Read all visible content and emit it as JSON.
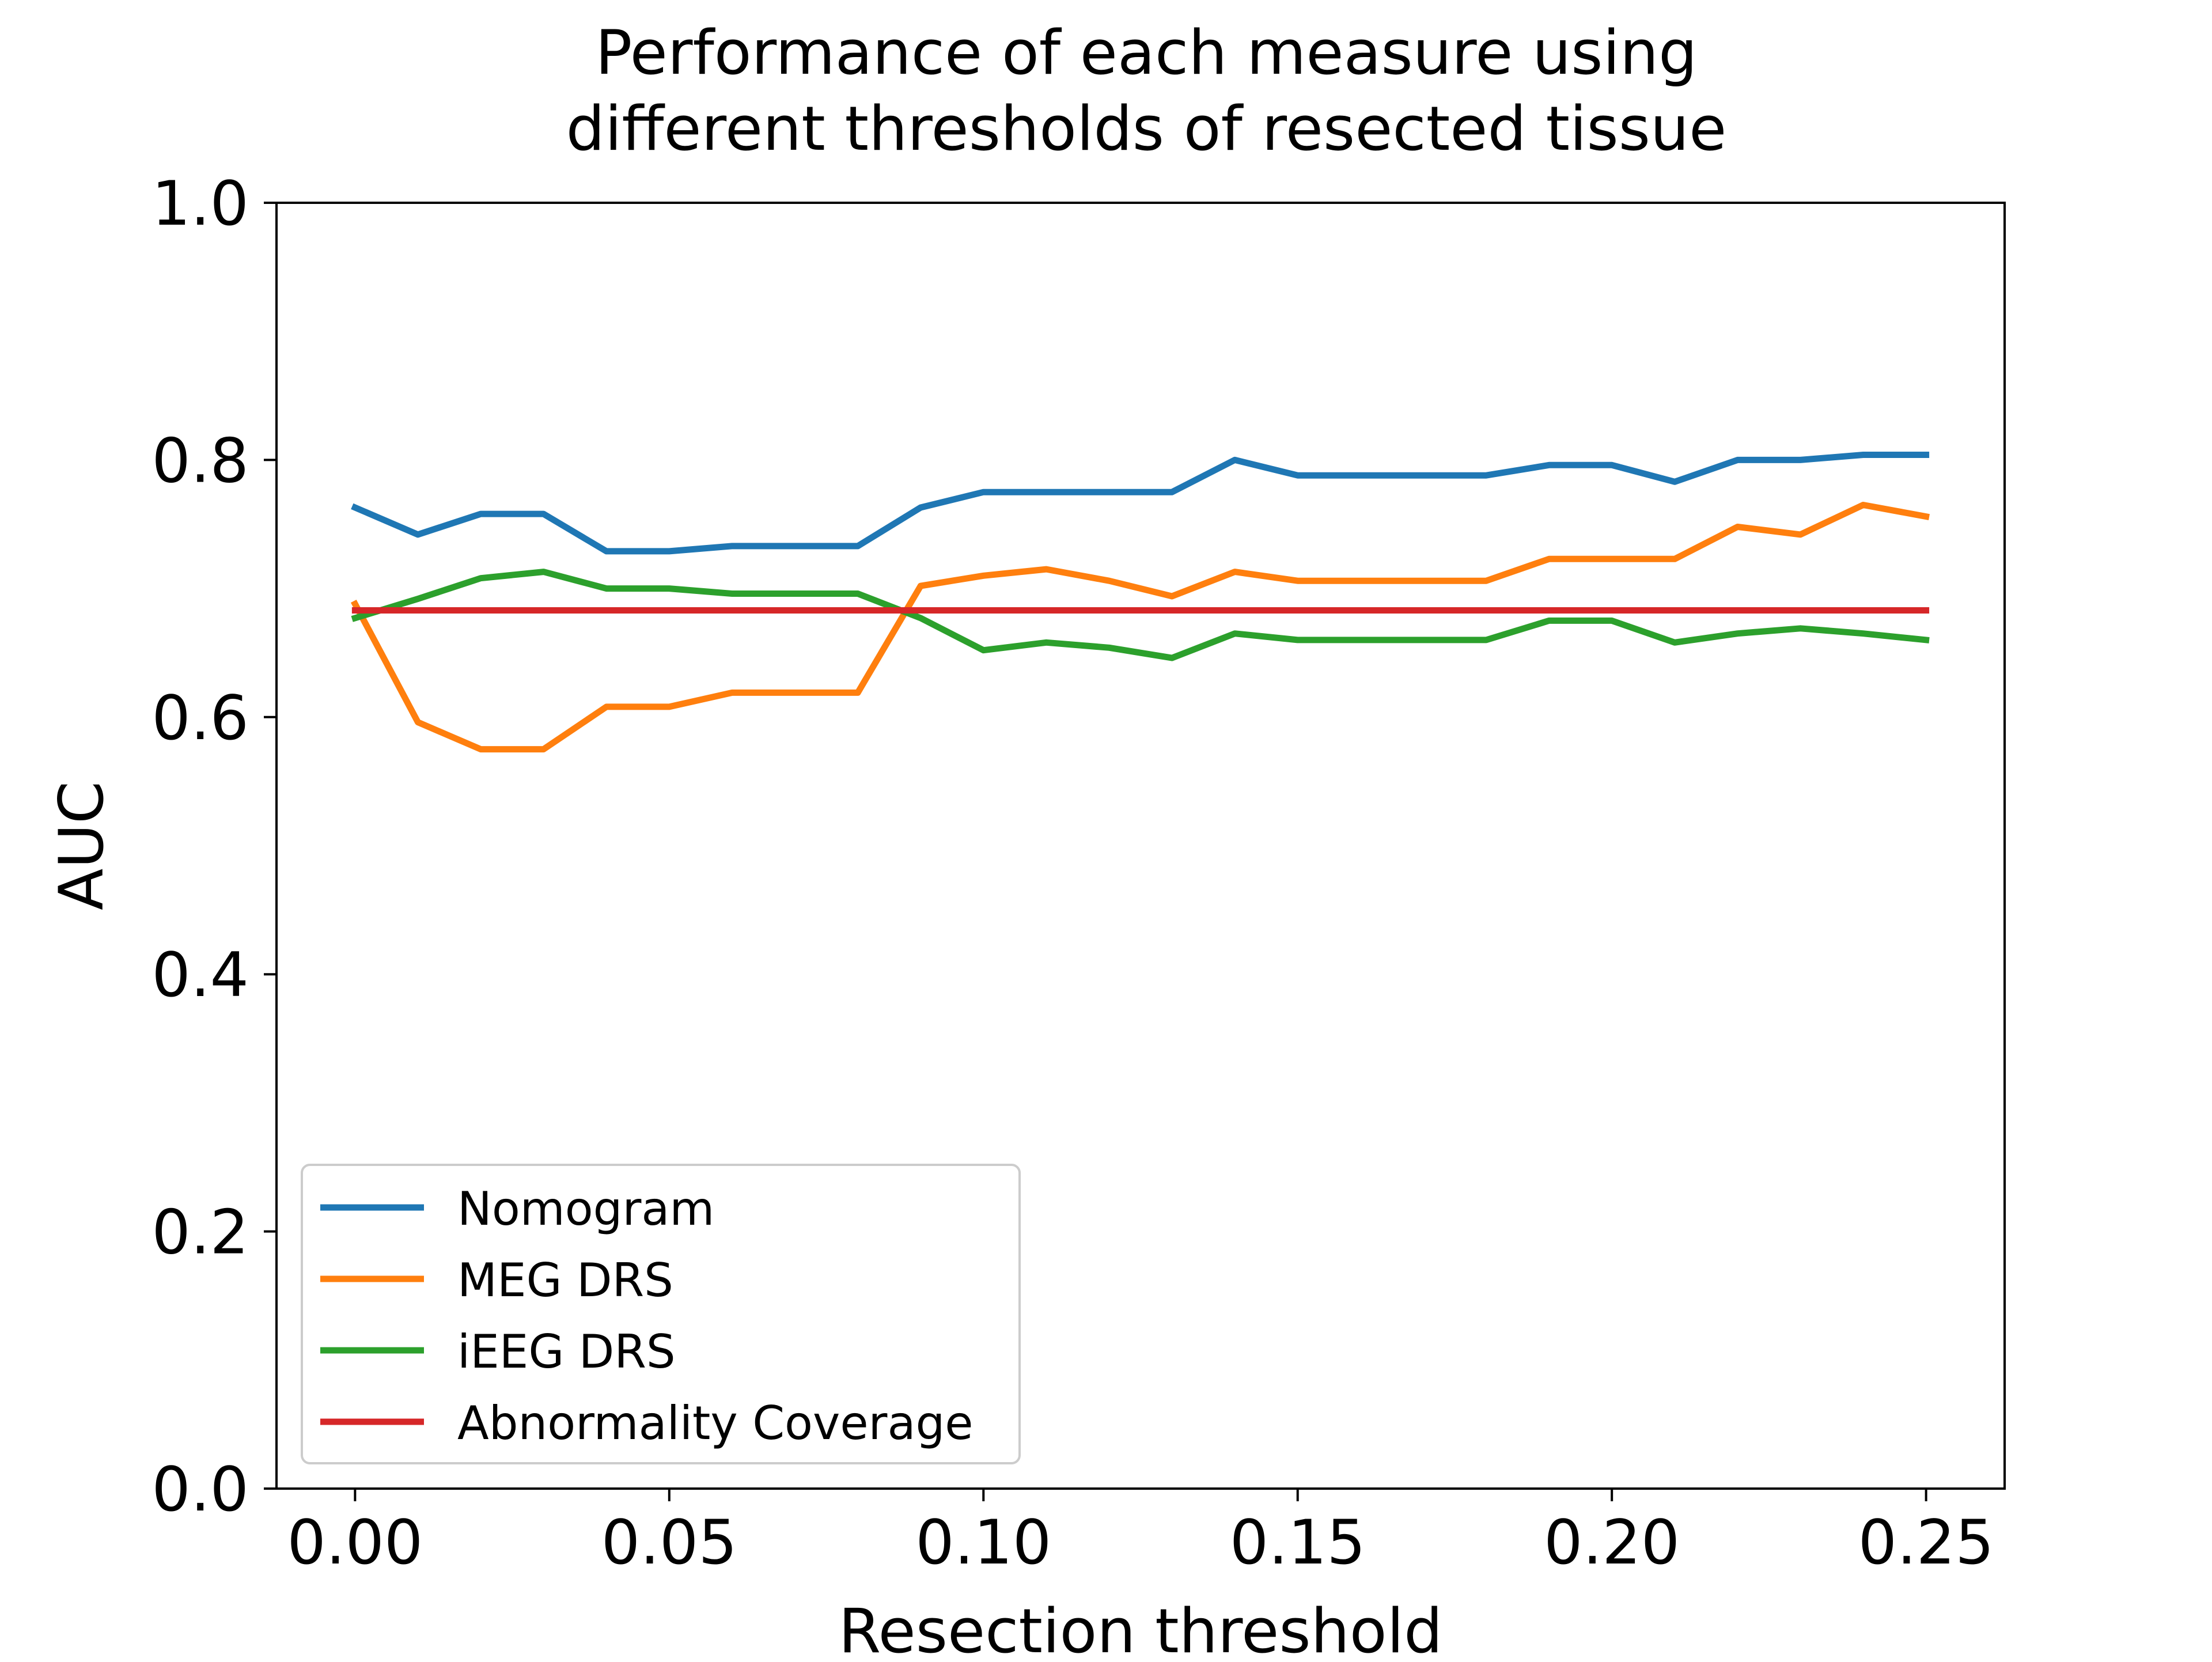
{
  "chart_data": {
    "type": "line",
    "title_lines": [
      "Performance of each measure using",
      "different thresholds of resected tissue"
    ],
    "xlabel": "Resection threshold",
    "ylabel": "AUC",
    "xlim": [
      -0.0125,
      0.2625
    ],
    "ylim": [
      0.0,
      1.0
    ],
    "xticks": [
      0.0,
      0.05,
      0.1,
      0.15,
      0.2,
      0.25
    ],
    "xtick_labels": [
      "0.00",
      "0.05",
      "0.10",
      "0.15",
      "0.20",
      "0.25"
    ],
    "yticks": [
      0.0,
      0.2,
      0.4,
      0.6,
      0.8,
      1.0
    ],
    "ytick_labels": [
      "0.0",
      "0.2",
      "0.4",
      "0.6",
      "0.8",
      "1.0"
    ],
    "grid": false,
    "legend_position": "lower-left",
    "x": [
      0.0,
      0.01,
      0.02,
      0.03,
      0.04,
      0.05,
      0.06,
      0.07,
      0.08,
      0.09,
      0.1,
      0.11,
      0.12,
      0.13,
      0.14,
      0.15,
      0.16,
      0.17,
      0.18,
      0.19,
      0.2,
      0.21,
      0.22,
      0.23,
      0.24,
      0.25
    ],
    "series": [
      {
        "name": "Nomogram",
        "color": "#1f77b4",
        "values": [
          0.763,
          0.742,
          0.758,
          0.758,
          0.729,
          0.729,
          0.733,
          0.733,
          0.733,
          0.763,
          0.775,
          0.775,
          0.775,
          0.775,
          0.8,
          0.788,
          0.788,
          0.788,
          0.788,
          0.796,
          0.796,
          0.783,
          0.8,
          0.8,
          0.804,
          0.804
        ]
      },
      {
        "name": "MEG DRS",
        "color": "#ff7f0e",
        "values": [
          0.688,
          0.596,
          0.575,
          0.575,
          0.608,
          0.608,
          0.619,
          0.619,
          0.619,
          0.702,
          0.71,
          0.715,
          0.706,
          0.694,
          0.713,
          0.706,
          0.706,
          0.706,
          0.706,
          0.723,
          0.723,
          0.723,
          0.748,
          0.742,
          0.765,
          0.756
        ]
      },
      {
        "name": "iEEG DRS",
        "color": "#2ca02c",
        "values": [
          0.677,
          0.692,
          0.708,
          0.713,
          0.7,
          0.7,
          0.696,
          0.696,
          0.696,
          0.677,
          0.652,
          0.658,
          0.654,
          0.646,
          0.665,
          0.66,
          0.66,
          0.66,
          0.66,
          0.675,
          0.675,
          0.658,
          0.665,
          0.669,
          0.665,
          0.66
        ]
      },
      {
        "name": "Abnormality Coverage",
        "color": "#d62728",
        "values": [
          0.683,
          0.683,
          0.683,
          0.683,
          0.683,
          0.683,
          0.683,
          0.683,
          0.683,
          0.683,
          0.683,
          0.683,
          0.683,
          0.683,
          0.683,
          0.683,
          0.683,
          0.683,
          0.683,
          0.683,
          0.683,
          0.683,
          0.683,
          0.683,
          0.683,
          0.683
        ]
      }
    ]
  }
}
